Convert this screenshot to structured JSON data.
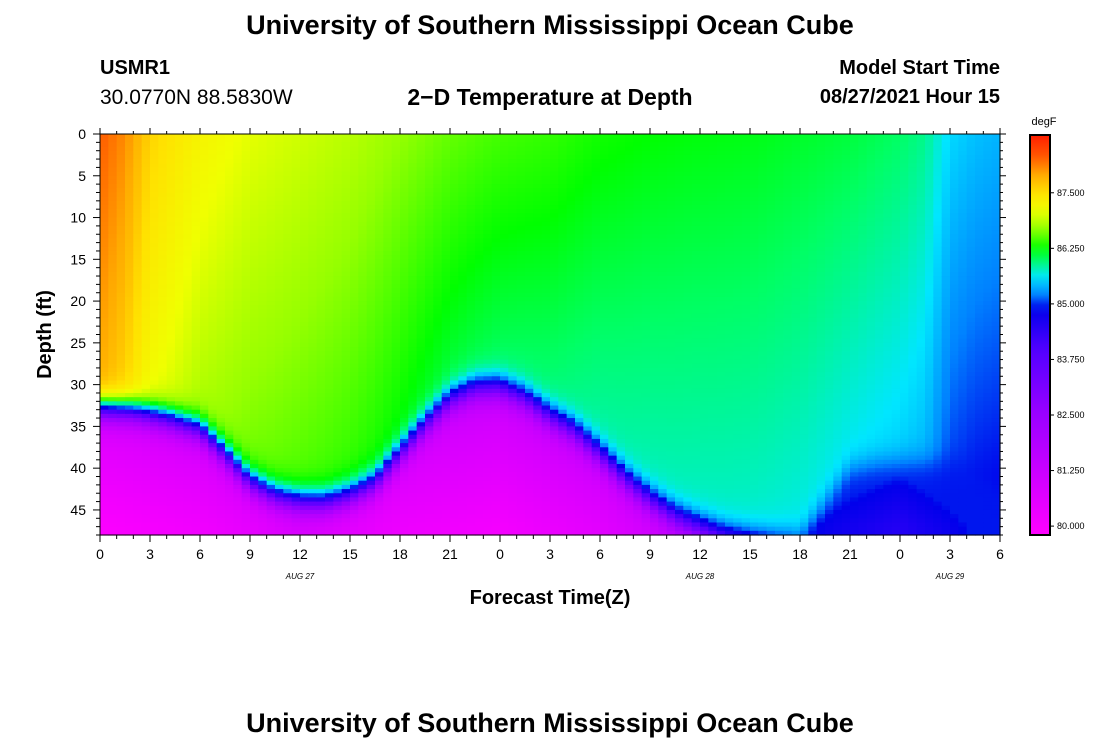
{
  "header": {
    "title": "University of Southern Mississippi Ocean Cube",
    "station_id": "USMR1",
    "station_coords": "30.0770N  88.5830W",
    "chart_title": "2−D Temperature at Depth",
    "model_label": "Model Start Time",
    "model_time": "08/27/2021 Hour 15"
  },
  "footer": {
    "title": "University of Southern Mississippi Ocean Cube"
  },
  "chart_data": {
    "type": "heatmap",
    "title": "2−D Temperature at Depth",
    "xlabel": "Forecast Time(Z)",
    "ylabel": "Depth (ft)",
    "x_ticks": [
      "0",
      "3",
      "6",
      "9",
      "12",
      "15",
      "18",
      "21",
      "0",
      "3",
      "6",
      "9",
      "12",
      "15",
      "18",
      "21",
      "0",
      "3",
      "6"
    ],
    "x_range_hours": [
      0,
      54
    ],
    "date_labels": [
      {
        "text": "AUG 27",
        "hour": 12
      },
      {
        "text": "AUG 28",
        "hour": 36
      },
      {
        "text": "AUG 29",
        "hour": 51
      }
    ],
    "y_ticks": [
      "0",
      "5",
      "10",
      "15",
      "20",
      "25",
      "30",
      "35",
      "40",
      "45"
    ],
    "ylim": [
      0,
      48
    ],
    "y_inverted": true,
    "colorbar": {
      "unit": "degF",
      "min": 79.8,
      "max": 88.8,
      "tick_labels": [
        "87.500",
        "86.250",
        "85.000",
        "83.750",
        "82.500",
        "81.250",
        "80.000"
      ],
      "tick_values": [
        87.5,
        86.25,
        85.0,
        83.75,
        82.5,
        81.25,
        80.0
      ]
    },
    "thermocline": {
      "x_hours": [
        0,
        2,
        4,
        6,
        7.5,
        9,
        10.5,
        12,
        13.5,
        15,
        16.5,
        18,
        19.5,
        21,
        22.5,
        24,
        25.5,
        27,
        28.5,
        30,
        31.5,
        33,
        34.5,
        36,
        37.5,
        39,
        40.5,
        42,
        43.5,
        45,
        46.5,
        48,
        49.5,
        51,
        52.5,
        54
      ],
      "depth_ft": [
        33,
        33.3,
        34.2,
        35.5,
        38.5,
        41.8,
        43.5,
        44.2,
        44.3,
        43.5,
        42,
        38.5,
        35,
        32,
        30.6,
        30.5,
        31.8,
        34,
        35.8,
        38.5,
        41.5,
        44,
        46,
        47.3,
        48.2,
        48.5,
        48.5,
        48,
        44,
        40,
        39.4,
        39.2,
        39.2,
        39.2,
        40.5,
        42
      ]
    },
    "surface_temp_degF": {
      "x_hours": [
        0,
        1.5,
        3,
        6,
        9,
        12,
        15,
        18,
        21,
        24,
        27,
        30,
        33,
        36,
        39,
        42,
        45,
        48,
        49.5,
        51,
        52.5,
        54
      ],
      "values": [
        88.3,
        88.05,
        87.6,
        87.25,
        87.05,
        86.95,
        86.85,
        86.7,
        86.55,
        86.45,
        86.4,
        86.3,
        86.25,
        86.22,
        86.2,
        86.15,
        86.1,
        86.0,
        85.9,
        85.55,
        85.45,
        85.4
      ]
    },
    "bottom_temp_degF": {
      "x_hours": [
        0,
        6,
        12,
        18,
        24,
        30,
        36,
        42,
        48,
        51,
        54
      ],
      "values": [
        79.9,
        80.2,
        80.8,
        80.3,
        80.1,
        80.6,
        81.5,
        84.9,
        84.5,
        84.8,
        85.2
      ]
    }
  }
}
